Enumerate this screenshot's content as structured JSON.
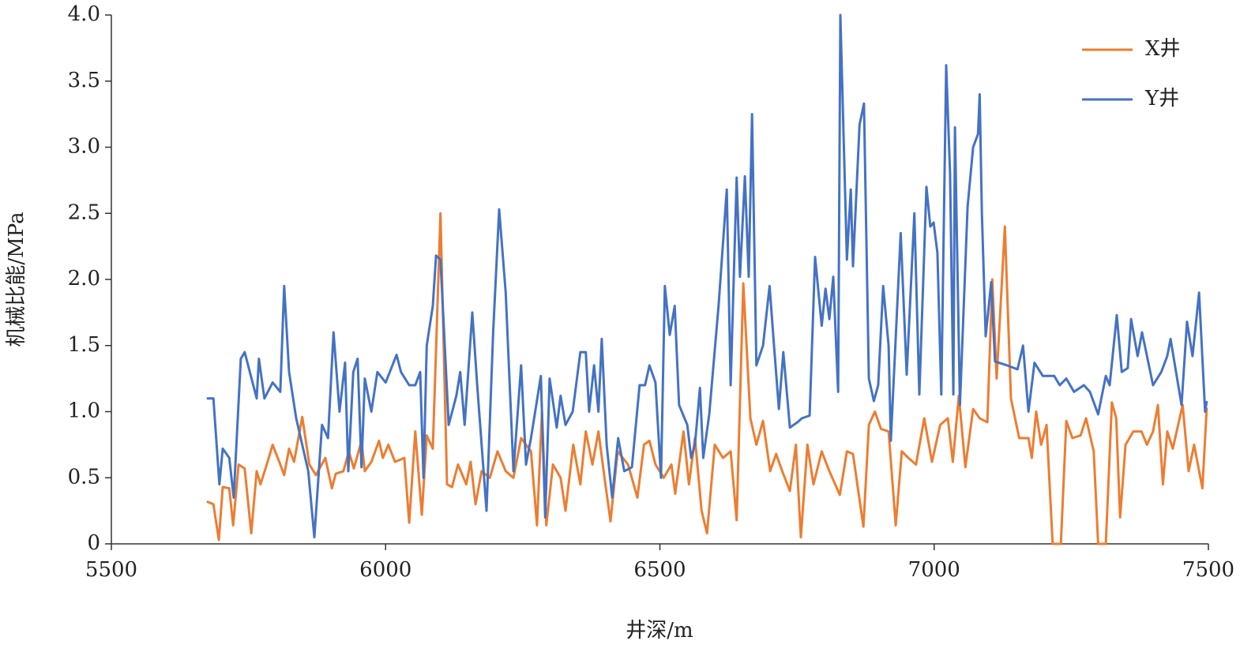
{
  "chart_data": {
    "type": "line",
    "x_label": "井深/m",
    "y_label": "机械比能/MPa",
    "xlim": [
      5500,
      7500
    ],
    "xticks": [
      5500,
      6000,
      6500,
      7000,
      7500
    ],
    "ylim": [
      0,
      4
    ],
    "yticks": [
      0,
      0.5,
      {
        "value": 1,
        "label": "1.0"
      },
      1.5,
      {
        "value": 2,
        "label": "2.0"
      },
      2.5,
      {
        "value": 3,
        "label": "3.0"
      },
      3.5,
      {
        "value": 4,
        "label": "4.0"
      }
    ],
    "legend": "upper right",
    "grid": false,
    "series": [
      {
        "name": "X井",
        "color": "#ed7d31",
        "x": [
          5674,
          5686,
          5696,
          5703,
          5715,
          5722,
          5732,
          5743,
          5755,
          5765,
          5772,
          5787,
          5794,
          5808,
          5815,
          5824,
          5833,
          5848,
          5861,
          5873,
          5890,
          5902,
          5909,
          5923,
          5933,
          5942,
          5956,
          5962,
          5974,
          5988,
          5995,
          6005,
          6017,
          6034,
          6043,
          6054,
          6066,
          6075,
          6086,
          6100,
          6112,
          6121,
          6132,
          6147,
          6155,
          6164,
          6175,
          6190,
          6204,
          6219,
          6233,
          6247,
          6265,
          6276,
          6285,
          6293,
          6305,
          6319,
          6328,
          6342,
          6355,
          6365,
          6377,
          6388,
          6399,
          6410,
          6423,
          6442,
          6459,
          6471,
          6481,
          6492,
          6507,
          6521,
          6528,
          6543,
          6553,
          6564,
          6576,
          6586,
          6600,
          6615,
          6629,
          6640,
          6652,
          6665,
          6676,
          6688,
          6701,
          6712,
          6723,
          6737,
          6748,
          6757,
          6769,
          6780,
          6795,
          6809,
          6828,
          6841,
          6852,
          6871,
          6881,
          6892,
          6903,
          6917,
          6930,
          6941,
          6953,
          6967,
          6982,
          6996,
          7011,
          7025,
          7034,
          7045,
          7057,
          7071,
          7083,
          7097,
          7106,
          7114,
          7129,
          7140,
          7155,
          7172,
          7178,
          7186,
          7195,
          7205,
          7216,
          7231,
          7241,
          7252,
          7267,
          7277,
          7291,
          7299,
          7313,
          7324,
          7332,
          7339,
          7349,
          7363,
          7378,
          7388,
          7399,
          7408,
          7417,
          7425,
          7435,
          7453,
          7464,
          7474,
          7489,
          7497
        ],
        "values": [
          0.32,
          0.3,
          0.03,
          0.43,
          0.42,
          0.14,
          0.6,
          0.57,
          0.08,
          0.55,
          0.45,
          0.65,
          0.75,
          0.6,
          0.52,
          0.72,
          0.62,
          0.96,
          0.6,
          0.52,
          0.65,
          0.42,
          0.53,
          0.55,
          0.7,
          0.57,
          0.78,
          0.55,
          0.62,
          0.78,
          0.65,
          0.75,
          0.62,
          0.65,
          0.16,
          0.85,
          0.22,
          0.82,
          0.72,
          2.5,
          0.45,
          0.43,
          0.6,
          0.45,
          0.62,
          0.3,
          0.55,
          0.5,
          0.7,
          0.55,
          0.5,
          0.8,
          0.7,
          0.14,
          1.0,
          0.14,
          0.6,
          0.5,
          0.25,
          0.75,
          0.45,
          0.85,
          0.6,
          0.85,
          0.5,
          0.17,
          0.7,
          0.6,
          0.35,
          0.75,
          0.78,
          0.6,
          0.5,
          0.6,
          0.38,
          0.85,
          0.45,
          0.8,
          0.25,
          0.08,
          0.75,
          0.65,
          0.7,
          0.18,
          1.97,
          0.95,
          0.75,
          0.93,
          0.55,
          0.68,
          0.55,
          0.4,
          0.75,
          0.05,
          0.75,
          0.45,
          0.7,
          0.55,
          0.37,
          0.7,
          0.68,
          0.13,
          0.9,
          1.0,
          0.87,
          0.85,
          0.14,
          0.7,
          0.65,
          0.6,
          0.95,
          0.62,
          0.9,
          0.95,
          0.62,
          1.12,
          0.58,
          1.02,
          0.95,
          0.92,
          2.0,
          1.25,
          2.4,
          1.1,
          0.8,
          0.8,
          0.65,
          1.0,
          0.75,
          0.9,
          0.0,
          0.0,
          0.93,
          0.8,
          0.82,
          0.95,
          0.7,
          0.0,
          0.0,
          1.07,
          0.95,
          0.2,
          0.75,
          0.85,
          0.85,
          0.75,
          0.85,
          1.05,
          0.45,
          0.85,
          0.72,
          1.05,
          0.55,
          0.75,
          0.42,
          1.03
        ]
      },
      {
        "name": "Y井",
        "color": "#4472c4",
        "x": [
          5674,
          5686,
          5697,
          5703,
          5715,
          5723,
          5736,
          5743,
          5765,
          5769,
          5779,
          5794,
          5808,
          5815,
          5824,
          5837,
          5859,
          5870,
          5884,
          5895,
          5905,
          5916,
          5926,
          5932,
          5941,
          5949,
          5956,
          5962,
          5974,
          5985,
          6000,
          6020,
          6028,
          6043,
          6054,
          6063,
          6069,
          6075,
          6086,
          6092,
          6100,
          6115,
          6129,
          6136,
          6144,
          6158,
          6167,
          6184,
          6196,
          6207,
          6219,
          6233,
          6247,
          6256,
          6265,
          6283,
          6291,
          6299,
          6312,
          6319,
          6328,
          6341,
          6355,
          6365,
          6371,
          6380,
          6388,
          6394,
          6403,
          6413,
          6424,
          6435,
          6449,
          6463,
          6473,
          6481,
          6492,
          6502,
          6509,
          6518,
          6527,
          6535,
          6550,
          6557,
          6564,
          6573,
          6579,
          6590,
          6607,
          6622,
          6629,
          6640,
          6646,
          6655,
          6662,
          6668,
          6676,
          6688,
          6700,
          6708,
          6717,
          6725,
          6737,
          6751,
          6759,
          6773,
          6783,
          6795,
          6802,
          6809,
          6816,
          6825,
          6829,
          6841,
          6848,
          6852,
          6864,
          6872,
          6881,
          6890,
          6898,
          6907,
          6917,
          6921,
          6939,
          6950,
          6964,
          6973,
          6986,
          6993,
          6999,
          7006,
          7013,
          7022,
          7029,
          7035,
          7038,
          7047,
          7061,
          7071,
          7080,
          7083,
          7087,
          7094,
          7104,
          7111,
          7133,
          7152,
          7162,
          7172,
          7183,
          7198,
          7209,
          7219,
          7229,
          7241,
          7255,
          7273,
          7284,
          7299,
          7313,
          7320,
          7333,
          7342,
          7353,
          7359,
          7371,
          7379,
          7399,
          7414,
          7425,
          7431,
          7443,
          7451,
          7461,
          7471,
          7483,
          7494,
          7497
        ],
        "values": [
          1.1,
          1.1,
          0.45,
          0.72,
          0.65,
          0.35,
          1.4,
          1.45,
          1.1,
          1.4,
          1.1,
          1.22,
          1.15,
          1.95,
          1.3,
          0.95,
          0.55,
          0.05,
          0.9,
          0.8,
          1.6,
          1.0,
          1.37,
          0.55,
          1.3,
          1.4,
          0.58,
          1.25,
          1.0,
          1.3,
          1.22,
          1.43,
          1.3,
          1.2,
          1.2,
          1.3,
          0.5,
          1.5,
          1.8,
          2.18,
          2.15,
          0.9,
          1.12,
          1.3,
          0.9,
          1.75,
          1.2,
          0.25,
          1.6,
          2.53,
          1.9,
          0.55,
          1.35,
          0.6,
          0.8,
          1.27,
          0.2,
          1.25,
          0.88,
          1.12,
          0.9,
          1.0,
          1.45,
          1.45,
          1.0,
          1.35,
          1.0,
          1.55,
          0.75,
          0.35,
          0.8,
          0.55,
          0.58,
          1.2,
          1.2,
          1.35,
          1.22,
          0.5,
          1.95,
          1.58,
          1.8,
          1.05,
          0.9,
          0.65,
          0.75,
          1.18,
          0.65,
          0.98,
          1.8,
          2.68,
          1.2,
          2.77,
          2.02,
          2.78,
          2.02,
          3.25,
          1.35,
          1.5,
          1.95,
          1.5,
          1.02,
          1.45,
          0.88,
          0.92,
          0.95,
          0.97,
          2.17,
          1.65,
          1.93,
          1.7,
          2.02,
          1.15,
          4.0,
          2.15,
          2.68,
          2.1,
          3.17,
          3.33,
          1.25,
          1.08,
          1.2,
          1.95,
          1.5,
          0.78,
          2.35,
          1.28,
          2.5,
          1.13,
          2.7,
          2.4,
          2.43,
          2.2,
          1.13,
          3.62,
          2.8,
          1.13,
          3.15,
          1.05,
          2.55,
          3.0,
          3.1,
          3.4,
          2.5,
          1.57,
          1.98,
          1.38,
          1.35,
          1.32,
          1.5,
          1.0,
          1.37,
          1.27,
          1.27,
          1.27,
          1.2,
          1.25,
          1.15,
          1.2,
          1.15,
          0.98,
          1.27,
          1.2,
          1.73,
          1.3,
          1.33,
          1.7,
          1.42,
          1.6,
          1.2,
          1.3,
          1.42,
          1.55,
          1.25,
          1.05,
          1.68,
          1.42,
          1.9,
          1.0,
          1.08
        ]
      }
    ]
  }
}
